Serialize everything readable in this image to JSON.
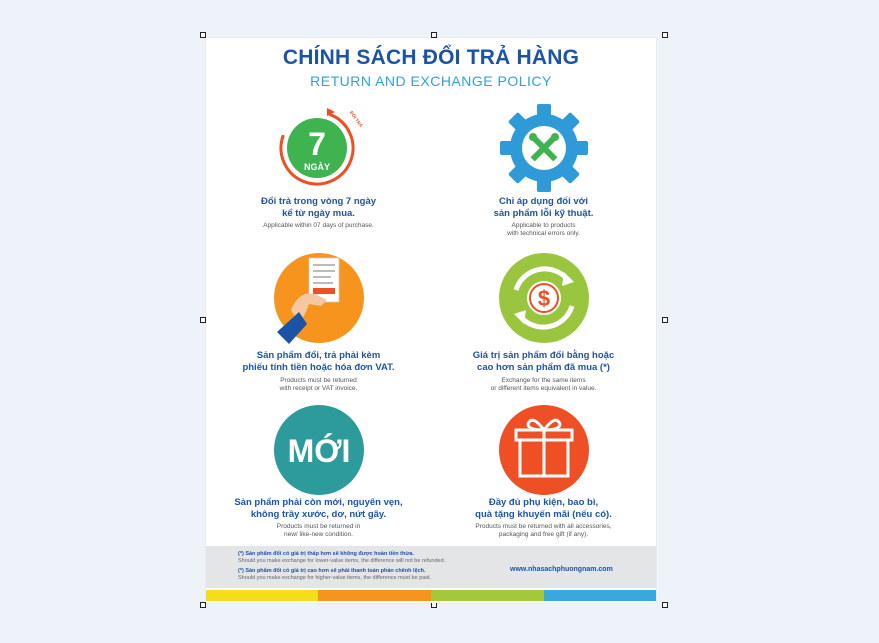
{
  "poster": {
    "title_vn": "CHÍNH SÁCH ĐỔI TRẢ HÀNG",
    "title_en": "RETURN AND EXCHANGE POLICY",
    "items": [
      {
        "icon": "calendar-7-days-icon",
        "badge_number": "7",
        "badge_unit": "NGÀY",
        "arrow_text": "ĐỔI TRẢ",
        "vn_line1": "Đổi trả trong vòng 7 ngày",
        "vn_line2": "kể từ ngày mua.",
        "en_line1": "Applicable within 07 days of purchase.",
        "en_line2": ""
      },
      {
        "icon": "gear-tools-icon",
        "vn_line1": "Chỉ áp dụng đối với",
        "vn_line2": "sản phẩm lỗi kỹ thuật.",
        "en_line1": "Applicable to products",
        "en_line2": "with technical errors only."
      },
      {
        "icon": "receipt-hand-icon",
        "vn_line1": "Sản phẩm đổi, trả phải kèm",
        "vn_line2": "phiếu tính tiền hoặc hóa đơn VAT.",
        "en_line1": "Products must be returned",
        "en_line2": "with receipt or VAT invoice."
      },
      {
        "icon": "dollar-exchange-icon",
        "vn_line1": "Giá trị sản phẩm đổi bằng hoặc",
        "vn_line2": "cao hơn sản phẩm đã mua (*)",
        "en_line1": "Exchange for the same items",
        "en_line2": "or different items equivalent in value."
      },
      {
        "icon": "new-label-icon",
        "badge_text": "MỚI",
        "vn_line1": "Sản phẩm phải còn mới, nguyên vẹn,",
        "vn_line2": "không trầy xước, dơ, nứt gãy.",
        "en_line1": "Products must be returned in",
        "en_line2": "new/ like-new condition."
      },
      {
        "icon": "gift-box-icon",
        "vn_line1": "Đầy đủ phụ kiện, bao bì,",
        "vn_line2": "quà tặng khuyến mãi (nếu có).",
        "en_line1": "Products must be returned with all accessories,",
        "en_line2": "packaging and free gift (if any)."
      }
    ],
    "notes": [
      {
        "vn": "(*) Sản phẩm đổi có giá trị thấp hơn sẽ không được hoàn tiền thừa.",
        "en": "Should you make exchange for lower-value items, the difference will not be refunded."
      },
      {
        "vn": "(*) Sản phẩm đổi có giá trị cao hơn sẽ phải thanh toán phần chênh lệch.",
        "en": "Should you make exchange for higher-value items, the difference must be paid."
      }
    ],
    "website": "www.nhasachphuongnam.com"
  },
  "colors": {
    "title_blue": "#1c54a5",
    "subtitle_cyan": "#2ba3dc",
    "green": "#3fb34f",
    "blue_gear": "#2f9ad8",
    "orange": "#f7941d",
    "lime": "#9ac63f",
    "teal": "#2d9b9c",
    "red_orange": "#ee4f24",
    "stripe_yellow": "#f5dd1b",
    "stripe_orange": "#f7941d",
    "stripe_green": "#a3c93a",
    "stripe_blue": "#3aa7de"
  }
}
